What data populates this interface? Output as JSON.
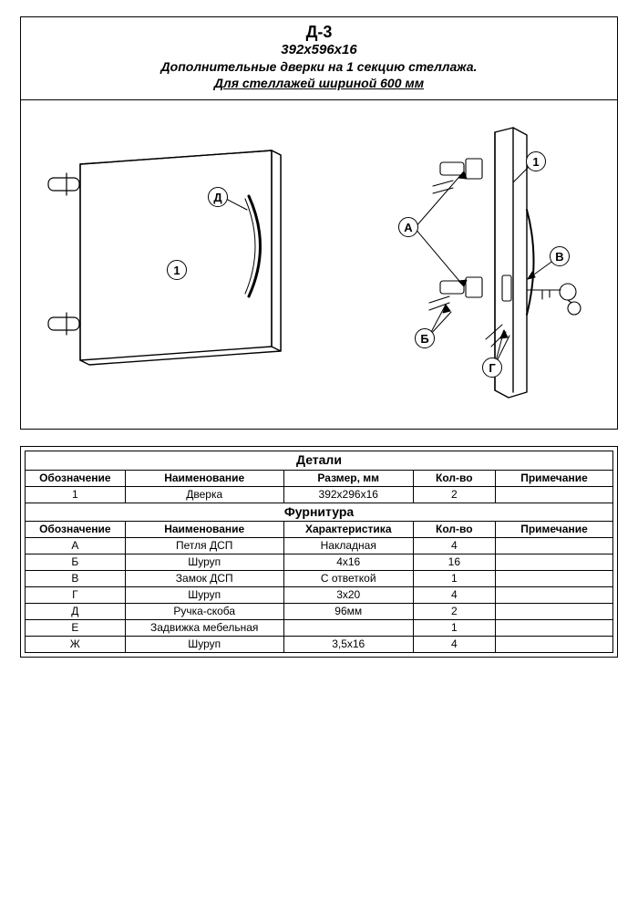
{
  "header": {
    "model": "Д-3",
    "dimensions": "392х596х16",
    "description": "Дополнительные дверки на 1 секцию стеллажа.",
    "subtitle": "Для стеллажей шириной 600 мм"
  },
  "callouts": {
    "front_handle": "Д",
    "front_panel": "1",
    "rear_panel": "1",
    "hinge": "А",
    "lock": "В",
    "screw_b": "Б",
    "screw_g": "Г"
  },
  "parts_table": {
    "title": "Детали",
    "headers": {
      "code": "Обозначение",
      "name": "Наименование",
      "size": "Размер, мм",
      "qty": "Кол-во",
      "note": "Примечание"
    },
    "rows": [
      {
        "code": "1",
        "name": "Дверка",
        "size": "392х296х16",
        "qty": "2",
        "note": ""
      }
    ]
  },
  "hardware_table": {
    "title": "Фурнитура",
    "headers": {
      "code": "Обозначение",
      "name": "Наименование",
      "char": "Характеристика",
      "qty": "Кол-во",
      "note": "Примечание"
    },
    "rows": [
      {
        "code": "А",
        "name": "Петля ДСП",
        "char": "Накладная",
        "qty": "4",
        "note": ""
      },
      {
        "code": "Б",
        "name": "Шуруп",
        "char": "4х16",
        "qty": "16",
        "note": ""
      },
      {
        "code": "В",
        "name": "Замок ДСП",
        "char": "С ответкой",
        "qty": "1",
        "note": ""
      },
      {
        "code": "Г",
        "name": "Шуруп",
        "char": "3х20",
        "qty": "4",
        "note": ""
      },
      {
        "code": "Д",
        "name": "Ручка-скоба",
        "char": "96мм",
        "qty": "2",
        "note": ""
      },
      {
        "code": "Е",
        "name": "Задвижка мебельная",
        "char": "",
        "qty": "1",
        "note": ""
      },
      {
        "code": "Ж",
        "name": "Шуруп",
        "char": "3,5х16",
        "qty": "4",
        "note": ""
      }
    ]
  },
  "style": {
    "stroke": "#000000",
    "fill": "#ffffff",
    "stroke_width": 1.4,
    "thin_stroke": 0.9
  }
}
